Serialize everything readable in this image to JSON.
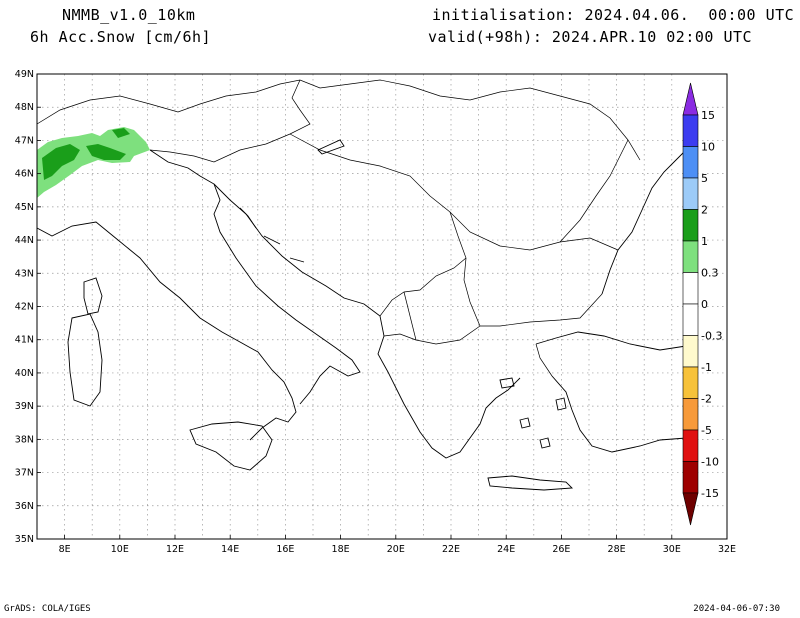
{
  "header": {
    "model": "NMMB_v1.0_10km",
    "field": "6h Acc.Snow [cm/6h]",
    "init": "initialisation: 2024.04.06.  00:00 UTC",
    "valid": "valid(+98h): 2024.APR.10 02:00 UTC"
  },
  "axes": {
    "lat_labels": [
      "49N",
      "48N",
      "47N",
      "46N",
      "45N",
      "44N",
      "43N",
      "42N",
      "41N",
      "40N",
      "39N",
      "38N",
      "37N",
      "36N",
      "35N"
    ],
    "lon_labels": [
      "8E",
      "10E",
      "12E",
      "14E",
      "16E",
      "18E",
      "20E",
      "22E",
      "24E",
      "26E",
      "28E",
      "30E",
      "32E"
    ],
    "grid": true
  },
  "colorbar": {
    "labels": [
      "15",
      "10",
      "5",
      "2",
      "1",
      "0.3",
      "0",
      "-0.3",
      "-1",
      "-2",
      "-5",
      "-10",
      "-15"
    ],
    "colors": [
      "#8a2be2",
      "#3c3cf0",
      "#4d8ff5",
      "#9ccbf8",
      "#1a9e1a",
      "#7ee07e",
      "#ffffff",
      "#ffffff",
      "#fffacd",
      "#f7c23a",
      "#f79a3a",
      "#e01010",
      "#9e0000",
      "#6e0000"
    ]
  },
  "footer": {
    "left": "GrADS: COLA/IGES",
    "right": "2024-04-06-07:30"
  }
}
